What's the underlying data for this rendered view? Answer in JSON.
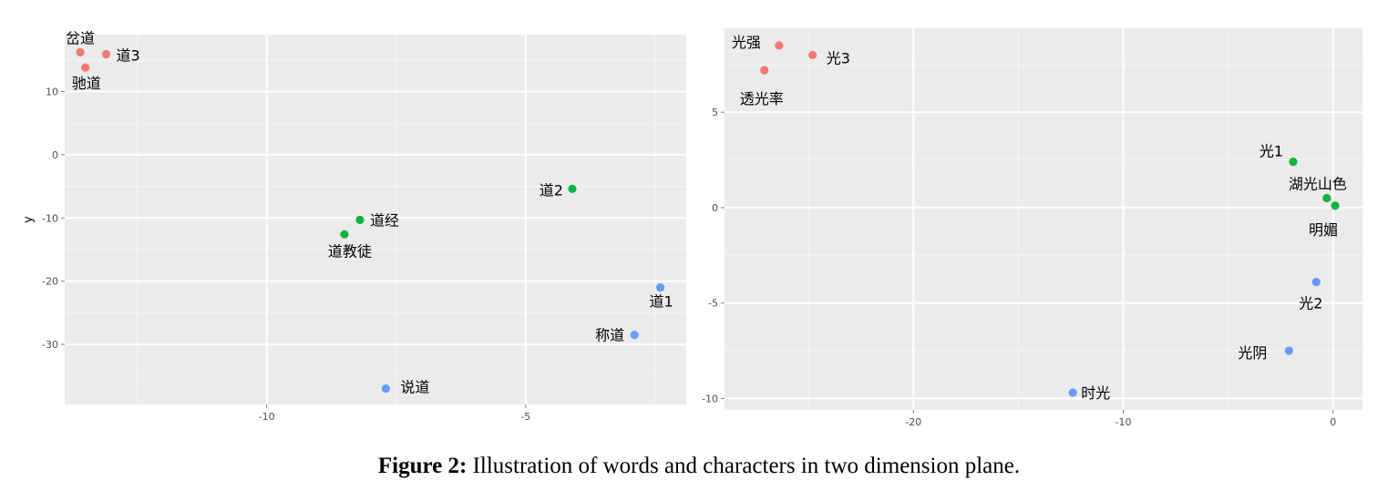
{
  "chart_data": [
    {
      "type": "scatter",
      "title": "",
      "xlabel": "",
      "ylabel": "y",
      "xlim": [
        -13.9,
        -1.9
      ],
      "ylim": [
        -39.5,
        19.0
      ],
      "grid": true,
      "legend": "none",
      "x_ticks": [
        -10,
        -5
      ],
      "y_ticks": [
        10,
        0,
        -10,
        -20,
        -30
      ],
      "series": [
        {
          "color": "#F8766D",
          "points": [
            {
              "label": "岔道",
              "x": -13.6,
              "y": 16.2
            },
            {
              "label": "道3",
              "x": -13.1,
              "y": 15.9
            },
            {
              "label": "驰道",
              "x": -13.5,
              "y": 13.8
            }
          ]
        },
        {
          "color": "#00BA38",
          "points": [
            {
              "label": "道2",
              "x": -4.1,
              "y": -5.4
            },
            {
              "label": "道经",
              "x": -8.2,
              "y": -10.3
            },
            {
              "label": "道教徒",
              "x": -8.5,
              "y": -12.6
            }
          ]
        },
        {
          "color": "#619CFF",
          "points": [
            {
              "label": "道1",
              "x": -2.4,
              "y": -21.0
            },
            {
              "label": "称道",
              "x": -2.9,
              "y": -28.5
            },
            {
              "label": "说道",
              "x": -7.7,
              "y": -37.0
            }
          ]
        }
      ]
    },
    {
      "type": "scatter",
      "title": "",
      "xlabel": "",
      "ylabel": "",
      "xlim": [
        -29.0,
        1.4
      ],
      "ylim": [
        -10.6,
        9.4
      ],
      "grid": true,
      "legend": "none",
      "x_ticks": [
        -20,
        -10,
        0
      ],
      "y_ticks": [
        5,
        0,
        -5,
        -10
      ],
      "series": [
        {
          "color": "#F8766D",
          "points": [
            {
              "label": "光强",
              "x": -26.4,
              "y": 8.5
            },
            {
              "label": "光3",
              "x": -24.8,
              "y": 8.0
            },
            {
              "label": "透光率",
              "x": -27.1,
              "y": 7.2
            }
          ]
        },
        {
          "color": "#00BA38",
          "points": [
            {
              "label": "光1",
              "x": -1.9,
              "y": 2.4
            },
            {
              "label": "湖光山色",
              "x": -0.3,
              "y": 0.5
            },
            {
              "label": "明媚",
              "x": 0.1,
              "y": 0.1
            }
          ]
        },
        {
          "color": "#619CFF",
          "points": [
            {
              "label": "光2",
              "x": -0.8,
              "y": -3.9
            },
            {
              "label": "光阴",
              "x": -2.1,
              "y": -7.5
            },
            {
              "label": "时光",
              "x": -12.4,
              "y": -9.7
            }
          ]
        }
      ]
    }
  ],
  "caption": {
    "label": "Figure 2:",
    "text": " Illustration of words and characters in two dimension plane."
  }
}
